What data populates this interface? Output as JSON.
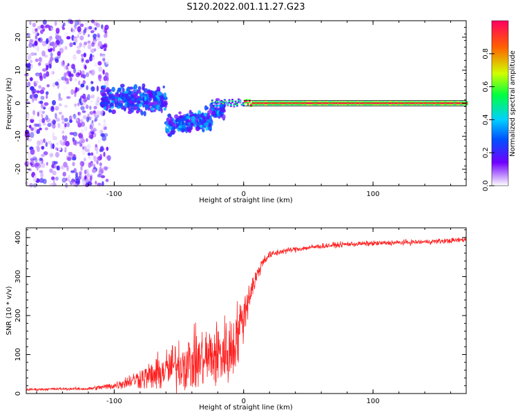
{
  "figure_title": "S120.2022.001.11.27.G23",
  "chart_data": [
    {
      "type": "heatmap",
      "title": "",
      "xlabel": "Height of straight line (km)",
      "ylabel": "Frequency (Hz)",
      "xlim": [
        -168,
        172
      ],
      "ylim": [
        -25,
        25
      ],
      "xticks": [
        -100,
        0,
        100
      ],
      "yticks": [
        -20,
        -10,
        0,
        10,
        20
      ],
      "colorbar": {
        "label": "Normalized spectral amplitude",
        "range": [
          0,
          1
        ],
        "ticks": [
          0.0,
          0.2,
          0.4,
          0.6,
          0.8
        ],
        "colormap": [
          "#ffffff",
          "#7000ff",
          "#0050ff",
          "#00d0ff",
          "#00ff40",
          "#d0ff00",
          "#ff6000",
          "#ff0040"
        ]
      },
      "description_regions": [
        {
          "x_range": [
            -168,
            -105
          ],
          "frequency_spread_hz": 25,
          "amplitude": "0.0-0.2 scattered"
        },
        {
          "x_range": [
            -105,
            -20
          ],
          "frequency_center_hz": [
            0,
            -7
          ],
          "frequency_spread_hz": 6,
          "amplitude": "0.1-0.4"
        },
        {
          "x_range": [
            -20,
            172
          ],
          "frequency_center_hz": 0,
          "frequency_spread_hz": 0.6,
          "amplitude": "0.8-1.0"
        }
      ]
    },
    {
      "type": "line",
      "title": "",
      "xlabel": "Height of straight line (km)",
      "ylabel": "SNR (10 * v/v)",
      "xlim": [
        -168,
        172
      ],
      "ylim": [
        0,
        425
      ],
      "xticks": [
        -100,
        0,
        100
      ],
      "yticks": [
        0,
        100,
        200,
        300,
        400
      ],
      "series": [
        {
          "color": "#ff2020",
          "x": [
            -168,
            -140,
            -120,
            -100,
            -90,
            -80,
            -70,
            -60,
            -50,
            -40,
            -30,
            -20,
            -10,
            -5,
            0,
            5,
            10,
            15,
            20,
            30,
            40,
            60,
            80,
            100,
            120,
            140,
            160,
            172
          ],
          "mean": [
            10,
            12,
            12,
            20,
            30,
            40,
            45,
            60,
            75,
            80,
            90,
            100,
            110,
            150,
            200,
            260,
            300,
            340,
            355,
            365,
            370,
            378,
            383,
            385,
            387,
            389,
            392,
            395
          ],
          "spread": [
            5,
            5,
            6,
            15,
            25,
            40,
            60,
            80,
            100,
            110,
            120,
            130,
            140,
            120,
            90,
            60,
            35,
            20,
            15,
            12,
            10,
            10,
            10,
            10,
            10,
            10,
            10,
            10
          ]
        }
      ]
    }
  ]
}
